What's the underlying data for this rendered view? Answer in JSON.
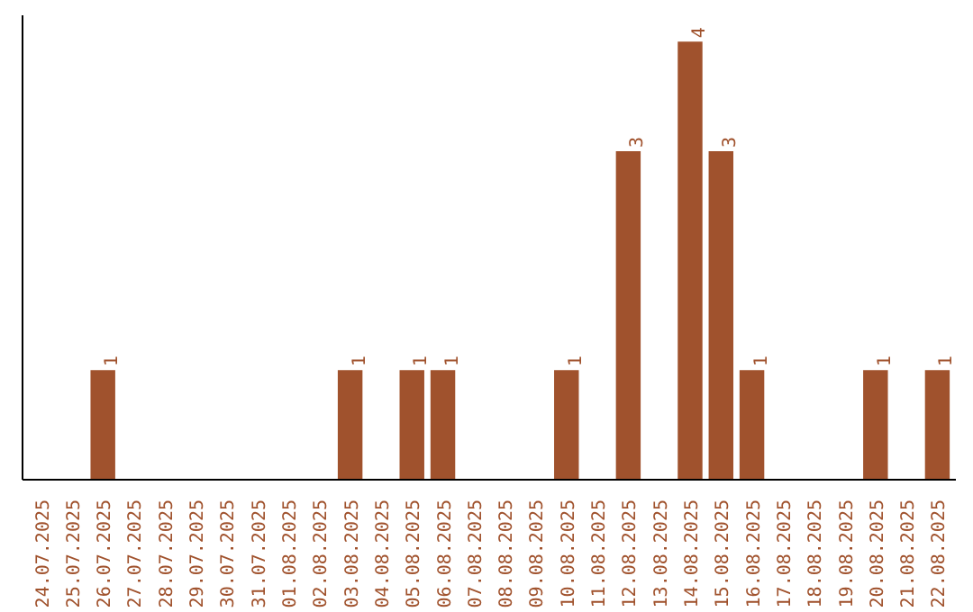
{
  "chart_data": {
    "type": "bar",
    "categories": [
      "24.07.2025",
      "25.07.2025",
      "26.07.2025",
      "27.07.2025",
      "28.07.2025",
      "29.07.2025",
      "30.07.2025",
      "31.07.2025",
      "01.08.2025",
      "02.08.2025",
      "03.08.2025",
      "04.08.2025",
      "05.08.2025",
      "06.08.2025",
      "07.08.2025",
      "08.08.2025",
      "09.08.2025",
      "10.08.2025",
      "11.08.2025",
      "12.08.2025",
      "13.08.2025",
      "14.08.2025",
      "15.08.2025",
      "16.08.2025",
      "17.08.2025",
      "18.08.2025",
      "19.08.2025",
      "20.08.2025",
      "21.08.2025",
      "22.08.2025"
    ],
    "values": [
      0,
      0,
      1,
      0,
      0,
      0,
      0,
      0,
      0,
      0,
      1,
      0,
      1,
      1,
      0,
      0,
      0,
      1,
      0,
      3,
      0,
      4,
      3,
      1,
      0,
      0,
      0,
      1,
      0,
      1
    ],
    "value_labels": [
      null,
      null,
      "1",
      null,
      null,
      null,
      null,
      null,
      null,
      null,
      "1",
      null,
      "1",
      "1",
      null,
      null,
      null,
      "1",
      null,
      "3",
      null,
      "4",
      "3",
      "1",
      null,
      null,
      null,
      "1",
      null,
      "1"
    ],
    "color": "#a0522d",
    "tick_labels": "x",
    "grid": false
  }
}
